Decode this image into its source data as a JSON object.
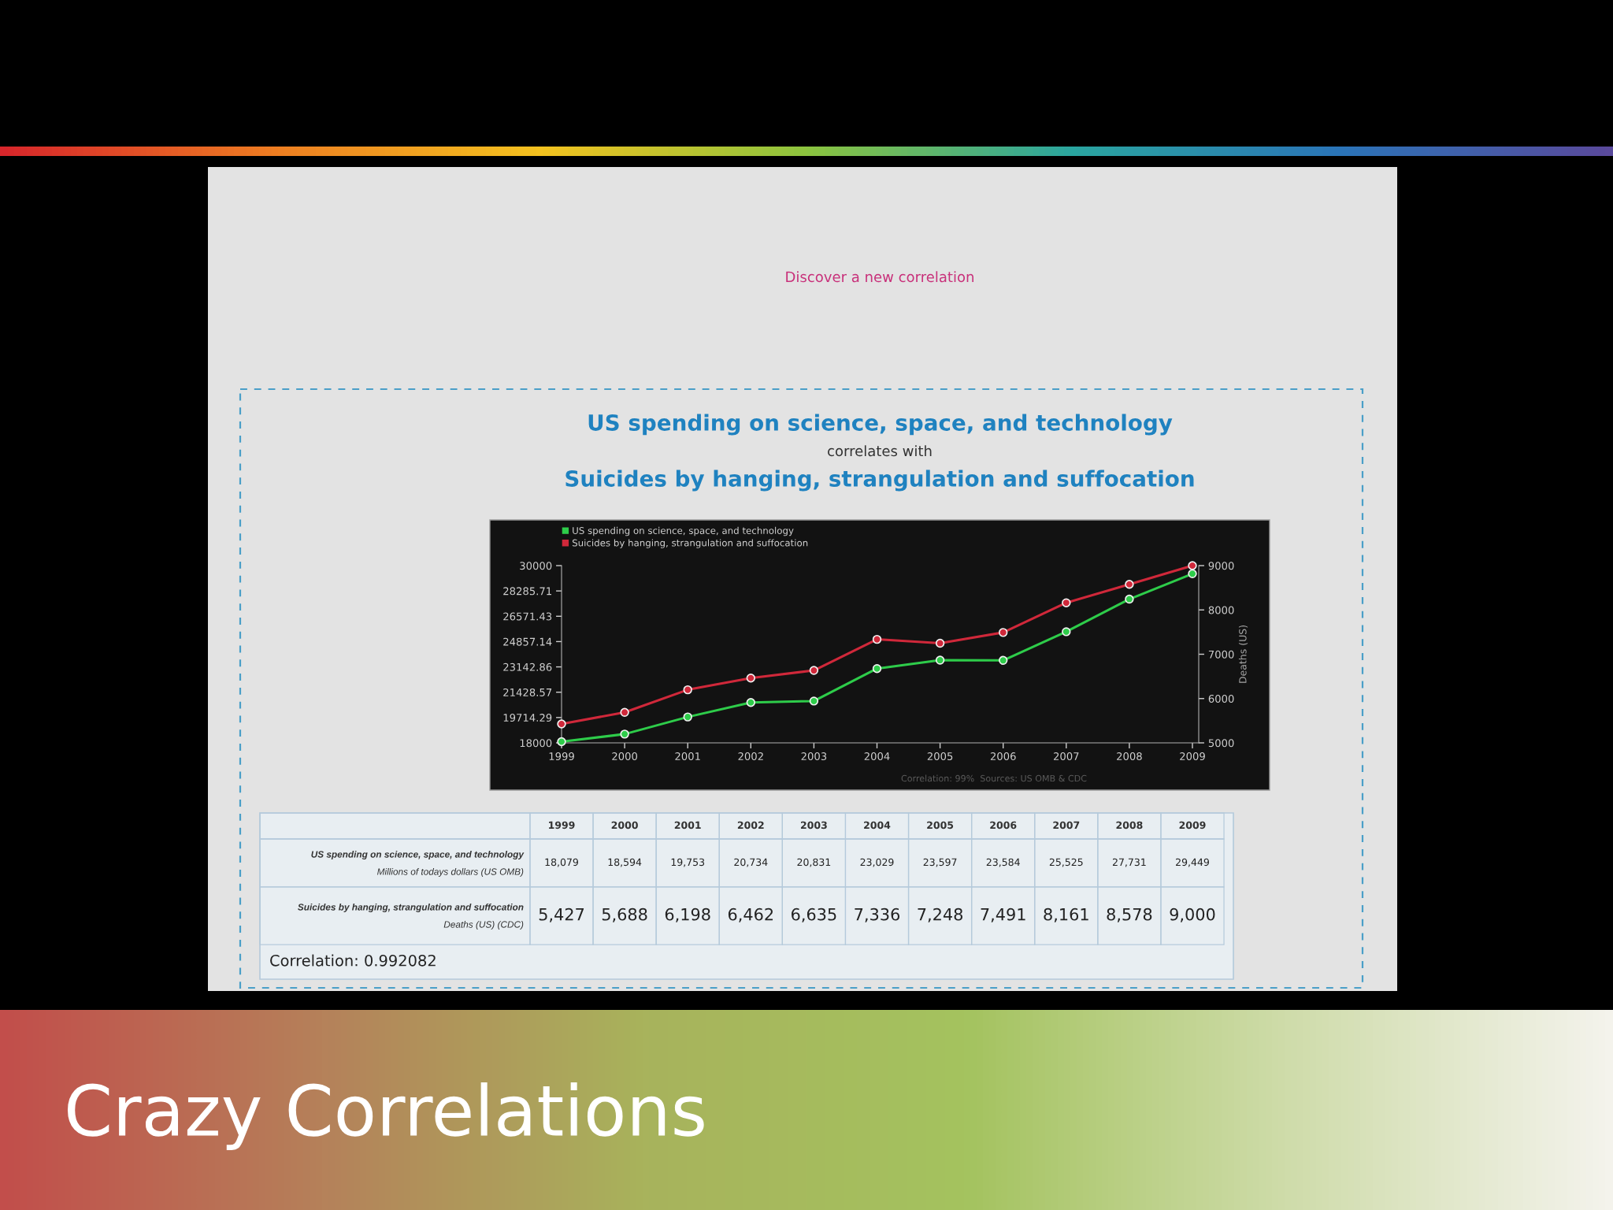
{
  "chart_data": {
    "type": "line",
    "title": "US spending on science, space, and technology",
    "subtitle": "correlates with",
    "y2label": "Deaths (US)",
    "annotations": [
      "Discover a new correlation",
      "Suicides by hanging, strangulation and suffocation",
      "Correlation: 99%  Sources: US OMB & CDC",
      "Millions of todays dollars (US OMB)",
      "Deaths (US) (CDC)",
      "Correlation: 0.992082",
      "Crazy Correlations"
    ],
    "categories": [
      "1999",
      "2000",
      "2001",
      "2002",
      "2003",
      "2004",
      "2005",
      "2006",
      "2007",
      "2008",
      "2009"
    ],
    "series": [
      {
        "name": "US spending on science, space, and technology",
        "color": "#2ecc4a",
        "values": [
          18079,
          18594,
          19753,
          20734,
          20831,
          23029,
          23597,
          23584,
          25525,
          27731,
          29449
        ],
        "value_labels": [
          "18,079",
          "18,594",
          "19,753",
          "20,734",
          "20,831",
          "23,029",
          "23,597",
          "23,584",
          "25,525",
          "27,731",
          "29,449"
        ]
      },
      {
        "name": "Suicides by hanging, strangulation and suffocation",
        "color": "#d0283a",
        "axis": "y2",
        "values": [
          5427,
          5688,
          6198,
          6462,
          6635,
          7336,
          7248,
          7491,
          8161,
          8578,
          9000
        ],
        "value_labels": [
          "5,427",
          "5,688",
          "6,198",
          "6,462",
          "6,635",
          "7,336",
          "7,248",
          "7,491",
          "8,161",
          "8,578",
          "9,000"
        ]
      }
    ],
    "ylim": [
      18000,
      30000
    ],
    "yticks": [
      18000,
      19714.29,
      21428.57,
      23142.86,
      24857.14,
      26571.43,
      28285.71,
      30000
    ],
    "y2lim": [
      5000,
      9000
    ],
    "y2ticks": [
      5000,
      6000,
      7000,
      8000,
      9000
    ],
    "legend": "top left",
    "marker": "circle",
    "line_style": "solid"
  }
}
